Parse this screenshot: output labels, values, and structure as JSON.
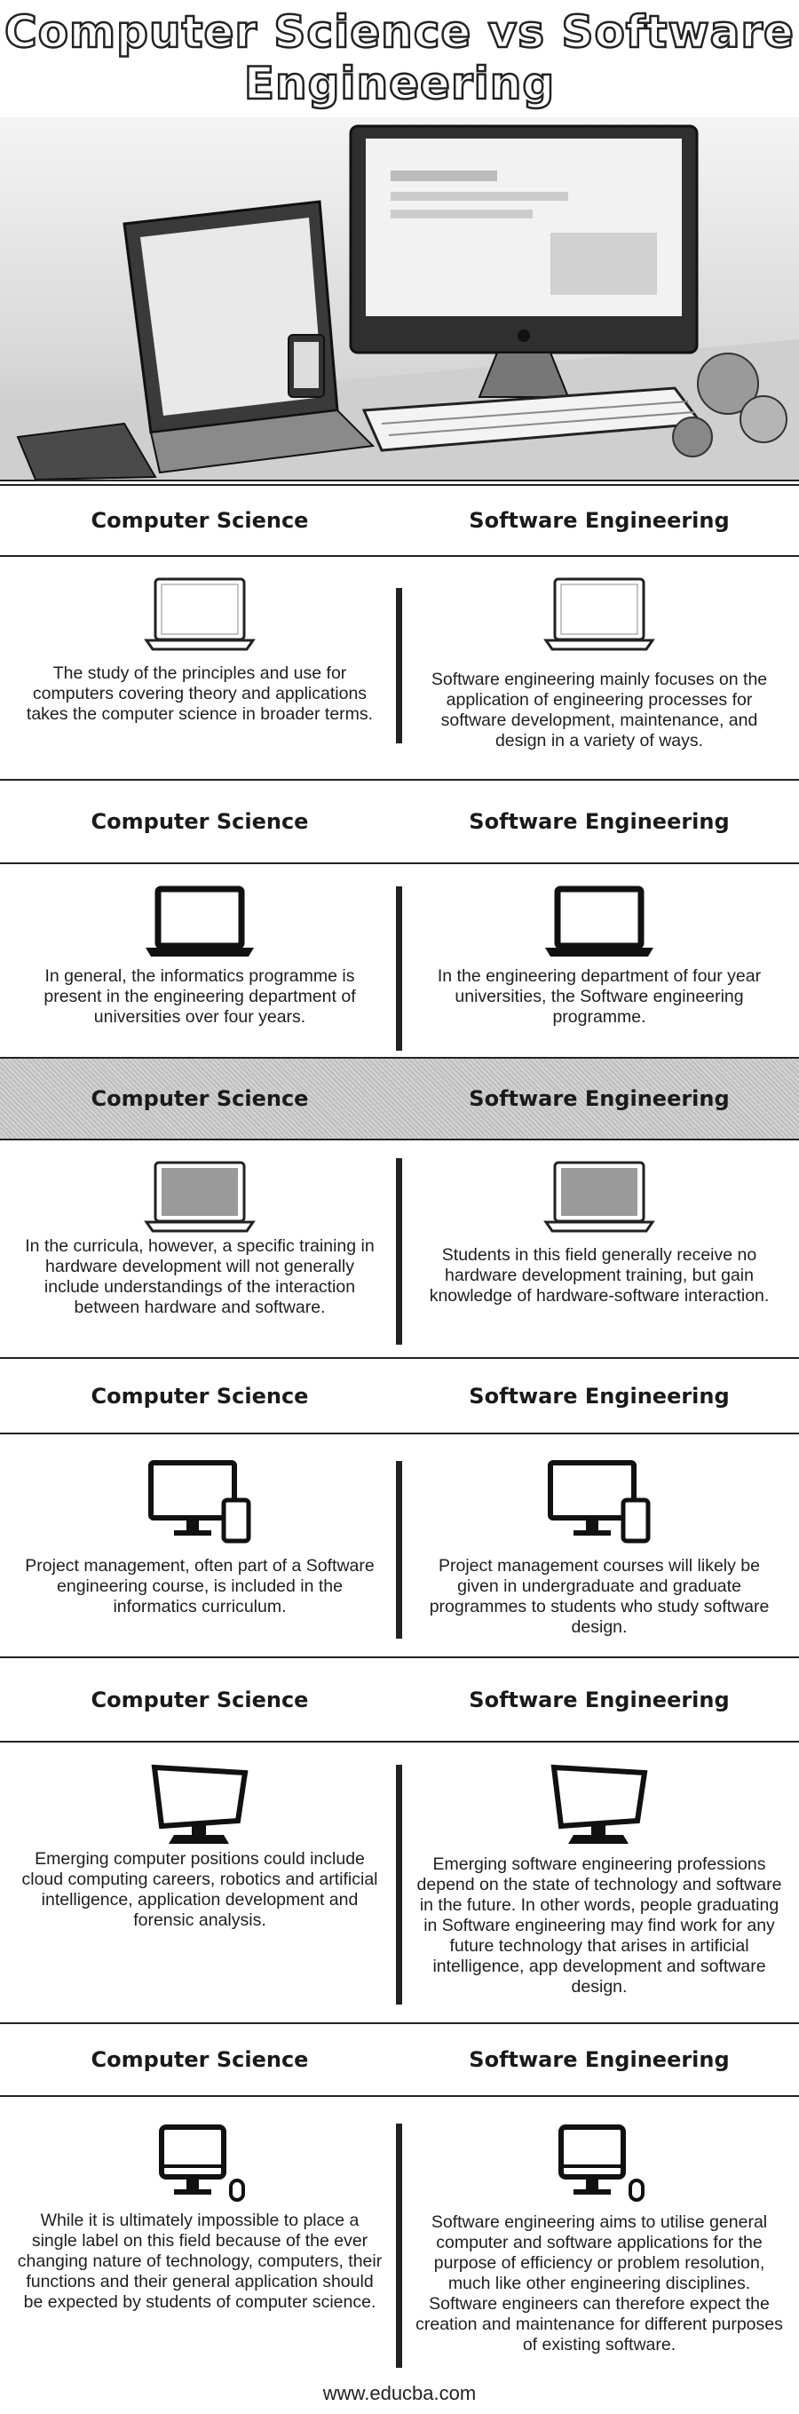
{
  "title": {
    "line1": "Computer Science vs Software",
    "line2": "Engineering"
  },
  "hero": {
    "icons": [
      "laptop-icon",
      "desktop-monitor-icon",
      "keyboard-icon",
      "tablet-icon"
    ]
  },
  "rows": [
    {
      "left_heading": "Computer Science",
      "right_heading": "Software Engineering",
      "left_text": "The study of the principles and use for computers covering theory and applications takes the computer science in broader terms.",
      "right_text": "Software engineering mainly focuses on the application of engineering processes for software development, maintenance, and design in a variety of ways.",
      "icon": "laptop-outline-icon",
      "shaded": false
    },
    {
      "left_heading": "Computer Science",
      "right_heading": "Software Engineering",
      "left_text": "In general, the informatics programme is present in the engineering department of universities over four years.",
      "right_text": "In the engineering department of four year universities, the Software engineering programme.",
      "icon": "laptop-icon",
      "shaded": false
    },
    {
      "left_heading": "Computer Science",
      "right_heading": "Software Engineering",
      "left_text": "In the curricula, however, a specific training in hardware development will not generally include understandings of the interaction between hardware and software.",
      "right_text": "Students in this field generally receive no hardware development training, but gain knowledge of hardware-software interaction.",
      "icon": "laptop-screen-icon",
      "shaded": true
    },
    {
      "left_heading": "Computer Science",
      "right_heading": "Software Engineering",
      "left_text": "Project management, often part of a Software engineering course, is included in the informatics curriculum.",
      "right_text": "Project management courses will likely be given in undergraduate and graduate programmes to students who study software design.",
      "icon": "monitor-phone-icon",
      "shaded": false
    },
    {
      "left_heading": "Computer Science",
      "right_heading": "Software Engineering",
      "left_text": "Emerging computer positions could include cloud computing careers, robotics and artificial intelligence, application development and forensic analysis.",
      "right_text": "Emerging software engineering professions depend on the state of technology and software in the future. In other words, people graduating in Software engineering may find work for any future technology that arises in artificial intelligence, app development and software design.",
      "icon": "crt-monitor-icon",
      "shaded": false
    },
    {
      "left_heading": "Computer Science",
      "right_heading": "Software Engineering",
      "left_text": "While it is ultimately impossible to place a single label on this field because of the ever changing nature of technology, computers, their functions and their general application should be expected by students of computer science.",
      "right_text": "Software engineering aims to utilise general computer and software applications for the purpose of efficiency or problem resolution, much like other engineering disciplines. Software engineers can therefore expect the creation and maintenance for different purposes of existing software.",
      "icon": "monitor-mouse-icon",
      "shaded": false
    }
  ],
  "footer": "www.educba.com"
}
